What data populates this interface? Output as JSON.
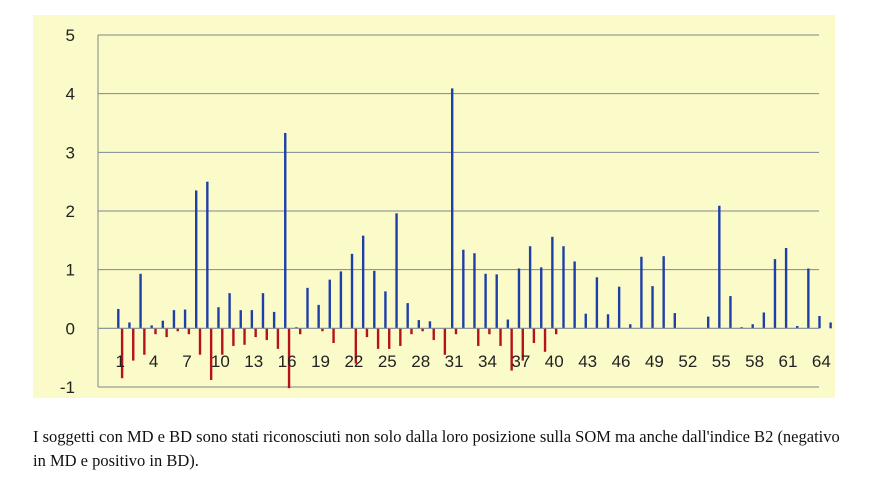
{
  "chart_data": {
    "type": "bar",
    "ylim": [
      -1,
      5
    ],
    "yticks": [
      "-1",
      "0",
      "1",
      "2",
      "3",
      "4",
      "5"
    ],
    "xtick_labels": [
      "1",
      "4",
      "7",
      "10",
      "13",
      "16",
      "19",
      "22",
      "25",
      "28",
      "31",
      "34",
      "37",
      "40",
      "43",
      "46",
      "49",
      "52",
      "55",
      "58",
      "61",
      "64"
    ],
    "grid": true,
    "legend": "none",
    "colors": {
      "background": "#fbfbc9",
      "positive": "#1f3fa8",
      "negative": "#b5121b",
      "grid": "#7f8790",
      "axis_text": "#222222"
    },
    "series": [
      {
        "values": [
          0.33,
          0.1,
          0.93,
          0.05,
          0.13,
          0.31,
          0.32,
          2.35,
          2.5,
          0.36,
          0.6,
          0.31,
          0.31,
          0.6,
          0.28,
          3.33,
          0.02,
          0.69,
          0.4,
          0.83,
          0.97,
          1.27,
          1.58,
          0.98,
          0.63,
          1.96,
          0.43,
          0.14,
          0.12,
          0.0,
          4.09,
          1.34,
          1.28,
          0.93,
          0.92,
          0.15,
          1.02,
          1.4,
          1.04,
          1.56,
          1.4,
          1.14,
          0.25,
          0.87,
          0.24,
          0.71,
          0.07,
          1.22,
          0.72,
          1.23,
          0.26,
          0.0,
          0.0,
          0.2,
          2.09,
          0.55,
          0.02,
          0.07,
          0.27,
          1.18,
          1.37,
          0.04,
          1.02,
          0.21,
          0.1
        ]
      },
      {
        "values": [
          -0.85,
          -0.55,
          -0.45,
          -0.1,
          -0.15,
          -0.05,
          -0.1,
          -0.45,
          -0.88,
          -0.45,
          -0.3,
          -0.28,
          -0.15,
          -0.2,
          -0.35,
          -1.02,
          -0.1,
          0.0,
          -0.05,
          -0.25,
          0.0,
          -0.6,
          -0.15,
          -0.35,
          -0.35,
          -0.3,
          -0.1,
          -0.05,
          -0.2,
          -0.45,
          -0.1,
          0.0,
          -0.3,
          -0.1,
          -0.3,
          -0.72,
          -0.55,
          -0.25,
          -0.4,
          -0.1,
          0.0,
          0.0,
          0.0,
          0.0,
          0.0,
          0.0,
          0.0,
          0.0,
          0.0,
          0.0,
          0.0,
          0.0,
          0.0,
          0.0,
          0.0,
          0.0,
          0.0,
          0.0,
          0.0,
          0.0,
          0.0,
          0.0,
          0.0,
          0.0,
          0.0
        ]
      }
    ]
  },
  "caption": "I soggetti con MD e BD sono stati riconosciuti non solo dalla loro posizione sulla SOM ma anche dall'indice B2 (negativo in MD e positivo in BD)."
}
